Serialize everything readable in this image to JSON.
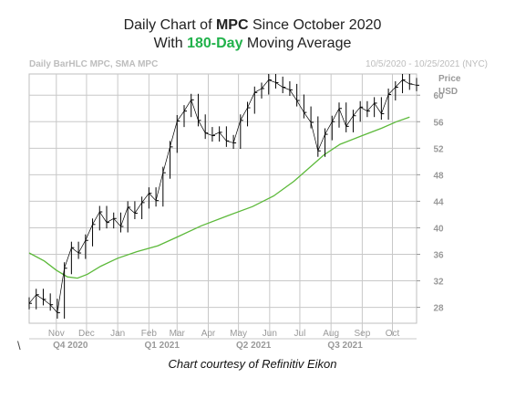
{
  "header": {
    "line1_prefix": "Daily Chart of ",
    "line1_ticker": "MPC",
    "line1_suffix": " Since October 2020",
    "line2_prefix": "With ",
    "line2_highlight": "180-Day",
    "line2_suffix": " Moving Average"
  },
  "chart_data": {
    "type": "line",
    "subtitle_left": "Daily BarHLC MPC, SMA MPC",
    "subtitle_right": "10/5/2020 - 10/25/2021 (NYC)",
    "ylabel": "Price",
    "yunit": "USD",
    "ylim": [
      25.6,
      63.2
    ],
    "xlim": [
      "2020-10-05",
      "2021-10-25"
    ],
    "y_ticks": [
      28,
      32,
      36,
      40,
      44,
      48,
      52,
      56,
      60
    ],
    "month_ticks": [
      {
        "label": "Nov",
        "date": "2020-11-01"
      },
      {
        "label": "Dec",
        "date": "2020-12-01"
      },
      {
        "label": "Jan",
        "date": "2021-01-01"
      },
      {
        "label": "Feb",
        "date": "2021-02-01"
      },
      {
        "label": "Mar",
        "date": "2021-03-01"
      },
      {
        "label": "Apr",
        "date": "2021-04-01"
      },
      {
        "label": "May",
        "date": "2021-05-01"
      },
      {
        "label": "Jun",
        "date": "2021-06-01"
      },
      {
        "label": "Jul",
        "date": "2021-07-01"
      },
      {
        "label": "Aug",
        "date": "2021-08-01"
      },
      {
        "label": "Sep",
        "date": "2021-09-01"
      },
      {
        "label": "Oct",
        "date": "2021-10-01"
      }
    ],
    "quarters": [
      {
        "label": "Q4 2020",
        "date": "2020-11-15"
      },
      {
        "label": "Q1 2021",
        "date": "2021-02-14"
      },
      {
        "label": "Q2 2021",
        "date": "2021-05-16"
      },
      {
        "label": "Q3 2021",
        "date": "2021-08-15"
      }
    ],
    "grid": true,
    "series": [
      {
        "style": "price-bars",
        "color": "#000000",
        "points": [
          {
            "x": "2020-10-05",
            "y": 28.6
          },
          {
            "x": "2020-10-12",
            "y": 29.9
          },
          {
            "x": "2020-10-19",
            "y": 29.2
          },
          {
            "x": "2020-10-26",
            "y": 28.4
          },
          {
            "x": "2020-11-02",
            "y": 27.2
          },
          {
            "x": "2020-11-09",
            "y": 33.9
          },
          {
            "x": "2020-11-16",
            "y": 37.0
          },
          {
            "x": "2020-11-23",
            "y": 36.2
          },
          {
            "x": "2020-11-30",
            "y": 38.1
          },
          {
            "x": "2020-12-07",
            "y": 40.5
          },
          {
            "x": "2020-12-14",
            "y": 42.4
          },
          {
            "x": "2020-12-21",
            "y": 40.8
          },
          {
            "x": "2020-12-28",
            "y": 41.4
          },
          {
            "x": "2021-01-04",
            "y": 40.2
          },
          {
            "x": "2021-01-11",
            "y": 43.1
          },
          {
            "x": "2021-01-18",
            "y": 42.2
          },
          {
            "x": "2021-01-25",
            "y": 43.8
          },
          {
            "x": "2021-02-01",
            "y": 45.2
          },
          {
            "x": "2021-02-08",
            "y": 44.1
          },
          {
            "x": "2021-02-15",
            "y": 48.3
          },
          {
            "x": "2021-02-22",
            "y": 52.2
          },
          {
            "x": "2021-03-01",
            "y": 56.1
          },
          {
            "x": "2021-03-08",
            "y": 57.6
          },
          {
            "x": "2021-03-15",
            "y": 59.3
          },
          {
            "x": "2021-03-22",
            "y": 56.2
          },
          {
            "x": "2021-03-29",
            "y": 54.3
          },
          {
            "x": "2021-04-05",
            "y": 53.9
          },
          {
            "x": "2021-04-12",
            "y": 54.4
          },
          {
            "x": "2021-04-19",
            "y": 53.1
          },
          {
            "x": "2021-04-26",
            "y": 52.8
          },
          {
            "x": "2021-05-03",
            "y": 56.2
          },
          {
            "x": "2021-05-10",
            "y": 58.1
          },
          {
            "x": "2021-05-17",
            "y": 60.4
          },
          {
            "x": "2021-05-24",
            "y": 61.0
          },
          {
            "x": "2021-05-31",
            "y": 62.3
          },
          {
            "x": "2021-06-07",
            "y": 61.9
          },
          {
            "x": "2021-06-14",
            "y": 61.2
          },
          {
            "x": "2021-06-21",
            "y": 60.8
          },
          {
            "x": "2021-06-28",
            "y": 59.2
          },
          {
            "x": "2021-07-05",
            "y": 57.4
          },
          {
            "x": "2021-07-12",
            "y": 55.9
          },
          {
            "x": "2021-07-19",
            "y": 51.6
          },
          {
            "x": "2021-07-26",
            "y": 54.1
          },
          {
            "x": "2021-08-02",
            "y": 56.0
          },
          {
            "x": "2021-08-09",
            "y": 58.0
          },
          {
            "x": "2021-08-16",
            "y": 55.3
          },
          {
            "x": "2021-08-23",
            "y": 56.9
          },
          {
            "x": "2021-08-30",
            "y": 58.2
          },
          {
            "x": "2021-09-06",
            "y": 57.6
          },
          {
            "x": "2021-09-13",
            "y": 58.8
          },
          {
            "x": "2021-09-20",
            "y": 57.2
          },
          {
            "x": "2021-09-27",
            "y": 60.1
          },
          {
            "x": "2021-10-04",
            "y": 61.2
          },
          {
            "x": "2021-10-11",
            "y": 62.3
          },
          {
            "x": "2021-10-18",
            "y": 61.7
          },
          {
            "x": "2021-10-25",
            "y": 61.5
          }
        ]
      },
      {
        "style": "sma-line",
        "color": "#5cb93a",
        "points": [
          {
            "x": "2020-10-05",
            "y": 36.2
          },
          {
            "x": "2020-10-20",
            "y": 35.0
          },
          {
            "x": "2020-11-01",
            "y": 33.6
          },
          {
            "x": "2020-11-12",
            "y": 32.6
          },
          {
            "x": "2020-11-22",
            "y": 32.4
          },
          {
            "x": "2020-12-02",
            "y": 33.0
          },
          {
            "x": "2020-12-15",
            "y": 34.2
          },
          {
            "x": "2021-01-01",
            "y": 35.4
          },
          {
            "x": "2021-01-20",
            "y": 36.4
          },
          {
            "x": "2021-02-10",
            "y": 37.3
          },
          {
            "x": "2021-03-01",
            "y": 38.6
          },
          {
            "x": "2021-03-25",
            "y": 40.3
          },
          {
            "x": "2021-04-20",
            "y": 41.8
          },
          {
            "x": "2021-05-15",
            "y": 43.2
          },
          {
            "x": "2021-06-05",
            "y": 44.8
          },
          {
            "x": "2021-06-25",
            "y": 47.0
          },
          {
            "x": "2021-07-10",
            "y": 49.0
          },
          {
            "x": "2021-07-25",
            "y": 51.0
          },
          {
            "x": "2021-08-10",
            "y": 52.6
          },
          {
            "x": "2021-09-01",
            "y": 53.9
          },
          {
            "x": "2021-09-20",
            "y": 55.0
          },
          {
            "x": "2021-10-05",
            "y": 56.0
          },
          {
            "x": "2021-10-18",
            "y": 56.7
          }
        ]
      }
    ]
  },
  "footer": {
    "backslash": "\\",
    "caption": "Chart courtesy of Refinitiv Eikon"
  }
}
